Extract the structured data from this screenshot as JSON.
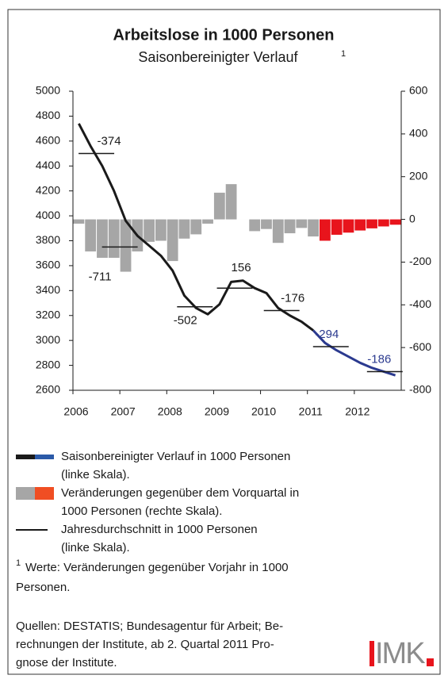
{
  "chart_data": {
    "type": "combo",
    "title": "Arbeitslose in 1000 Personen",
    "subtitle": "Saisonbereinigter Verlauf",
    "subtitle_note": "1",
    "xlim": [
      2006,
      2013
    ],
    "xticks": [
      2006,
      2007,
      2008,
      2009,
      2010,
      2011,
      2012
    ],
    "ylim": [
      2600,
      5000
    ],
    "yticks": [
      2600,
      2800,
      3000,
      3200,
      3400,
      3600,
      3800,
      4000,
      4200,
      4400,
      4600,
      4800,
      5000
    ],
    "y2lim": [
      -800,
      600
    ],
    "y2ticks": [
      -800,
      -600,
      -400,
      -200,
      0,
      200,
      400,
      600
    ],
    "bars": [
      {
        "color": "#a6a6a6",
        "axis": "y2",
        "x": [
          2006.125,
          2006.375,
          2006.625,
          2006.875,
          2007.125,
          2007.375,
          2007.625,
          2007.875,
          2008.125,
          2008.375,
          2008.625,
          2008.875,
          2009.125,
          2009.375,
          2009.625,
          2009.875,
          2010.125,
          2010.375,
          2010.625,
          2010.875,
          2011.125
        ],
        "values": [
          -20,
          -150,
          -180,
          -180,
          -245,
          -150,
          -105,
          -100,
          -195,
          -90,
          -70,
          -20,
          125,
          165,
          0,
          -55,
          -45,
          -110,
          -65,
          -40,
          -80
        ]
      },
      {
        "color": "#e8141c",
        "axis": "y2",
        "x": [
          2011.375,
          2011.625,
          2011.875,
          2012.125,
          2012.375,
          2012.625,
          2012.875
        ],
        "values": [
          -100,
          -72,
          -62,
          -52,
          -42,
          -33,
          -25
        ]
      }
    ],
    "lines": [
      {
        "color": "#1a1a1a",
        "x": [
          2006.125,
          2006.375,
          2006.625,
          2006.875,
          2007.125,
          2007.375,
          2007.625,
          2007.875,
          2008.125,
          2008.375,
          2008.625,
          2008.875,
          2009.125,
          2009.375,
          2009.625,
          2009.875,
          2010.125,
          2010.375,
          2010.625,
          2010.875,
          2011.125
        ],
        "values": [
          4740,
          4560,
          4400,
          4200,
          3960,
          3840,
          3760,
          3680,
          3560,
          3360,
          3260,
          3210,
          3290,
          3470,
          3480,
          3420,
          3380,
          3260,
          3200,
          3150,
          3080
        ]
      },
      {
        "color": "#2b3a8f",
        "x": [
          2011.125,
          2011.375,
          2011.625,
          2011.875,
          2012.125,
          2012.375,
          2012.625,
          2012.875
        ],
        "values": [
          3080,
          2980,
          2920,
          2870,
          2820,
          2780,
          2750,
          2720
        ]
      }
    ],
    "annual_average": {
      "x": [
        2006.5,
        2007.0,
        2008.6,
        2009.45,
        2010.45,
        2011.5,
        2012.65
      ],
      "values": [
        4500,
        3750,
        3270,
        3420,
        3240,
        2950,
        2750
      ],
      "changes": [
        -374,
        -711,
        -502,
        156,
        -176,
        -294,
        -186
      ],
      "label_colors": [
        "#1a1a1a",
        "#1a1a1a",
        "#1a1a1a",
        "#1a1a1a",
        "#1a1a1a",
        "#2b3a8f",
        "#2b3a8f"
      ]
    },
    "legend": [
      {
        "colors": [
          "#1a1a1a",
          "#2b5aa8"
        ],
        "lines": [
          "Saisonbereinigter Verlauf in 1000 Personen",
          "(linke Skala)."
        ]
      },
      {
        "colors": [
          "#a6a6a6",
          "#f04e23"
        ],
        "lines": [
          "Veränderungen gegenüber dem Vorquartal in",
          "1000 Personen (rechte Skala)."
        ]
      },
      {
        "colors": [
          "#1a1a1a"
        ],
        "lines": [
          "Jahresdurchschnitt in 1000 Personen",
          "(linke Skala)."
        ]
      }
    ],
    "footnote": {
      "marker": "1",
      "lines": [
        "Werte: Veränderungen gegenüber Vorjahr in 1000",
        "Personen."
      ]
    },
    "sources": [
      "Quellen: DESTATIS; Bundesagentur für Arbeit; Be-",
      "rechnungen der Institute, ab 2. Quartal 2011 Pro-",
      "gnose der Institute."
    ],
    "logo": "IMK"
  }
}
